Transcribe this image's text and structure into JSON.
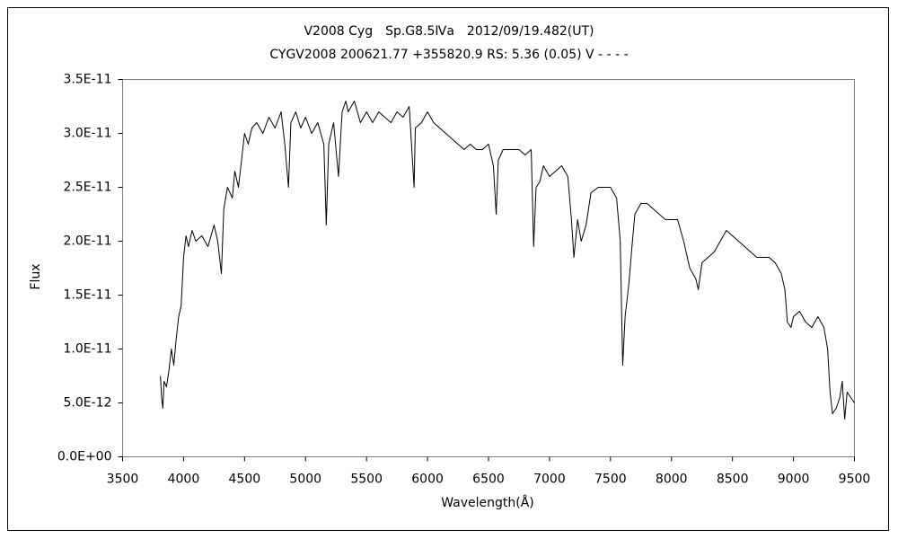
{
  "chart_data": {
    "type": "line",
    "title": "V2008 Cyg　Sp.G8.5Ⅳa　2012/09/19.482(UT)",
    "subtitle": "CYGV2008 200621.77 +355820.9 RS: 5.36 (0.05) V - - - -",
    "x_label": "Wavelength(Å)",
    "y_label": "Flux",
    "xlim": [
      3500,
      9500
    ],
    "xticks": [
      3500,
      4000,
      4500,
      5000,
      5500,
      6000,
      6500,
      7000,
      7500,
      8000,
      8500,
      9000,
      9500
    ],
    "ylim": [
      0,
      3.5e-11
    ],
    "yticks": [
      {
        "value": 0,
        "label": "0.0E+00"
      },
      {
        "value": 5e-12,
        "label": "5.0E-12"
      },
      {
        "value": 1e-11,
        "label": "1.0E-11"
      },
      {
        "value": 1.5e-11,
        "label": "1.5E-11"
      },
      {
        "value": 2e-11,
        "label": "2.0E-11"
      },
      {
        "value": 2.5e-11,
        "label": "2.5E-11"
      },
      {
        "value": 3e-11,
        "label": "3.0E-11"
      },
      {
        "value": 3.5e-11,
        "label": "3.5E-11"
      }
    ],
    "grid": false,
    "x": [
      3810,
      3820,
      3830,
      3840,
      3860,
      3880,
      3900,
      3920,
      3940,
      3960,
      3980,
      4000,
      4020,
      4040,
      4070,
      4100,
      4150,
      4200,
      4250,
      4280,
      4310,
      4330,
      4360,
      4400,
      4420,
      4450,
      4480,
      4500,
      4530,
      4560,
      4600,
      4650,
      4700,
      4750,
      4800,
      4830,
      4860,
      4880,
      4920,
      4960,
      5000,
      5050,
      5100,
      5150,
      5170,
      5190,
      5230,
      5270,
      5300,
      5330,
      5350,
      5400,
      5450,
      5500,
      5550,
      5600,
      5650,
      5700,
      5750,
      5800,
      5850,
      5890,
      5900,
      5950,
      6000,
      6050,
      6100,
      6150,
      6200,
      6250,
      6300,
      6350,
      6400,
      6450,
      6500,
      6540,
      6563,
      6580,
      6620,
      6680,
      6750,
      6800,
      6850,
      6870,
      6890,
      6920,
      6950,
      7000,
      7050,
      7100,
      7150,
      7180,
      7200,
      7230,
      7260,
      7300,
      7340,
      7400,
      7450,
      7500,
      7550,
      7580,
      7600,
      7620,
      7650,
      7680,
      7700,
      7750,
      7800,
      7850,
      7900,
      7950,
      8000,
      8050,
      8100,
      8150,
      8200,
      8220,
      8250,
      8300,
      8350,
      8400,
      8450,
      8500,
      8550,
      8600,
      8650,
      8700,
      8750,
      8800,
      8850,
      8900,
      8930,
      8950,
      8980,
      9000,
      9050,
      9100,
      9150,
      9200,
      9250,
      9280,
      9300,
      9320,
      9350,
      9380,
      9400,
      9420,
      9440,
      9470,
      9500
    ],
    "series": [
      {
        "name": "V2008 Cyg",
        "color": "#000000",
        "values": [
          7.5e-12,
          5.5e-12,
          4.5e-12,
          7e-12,
          6.5e-12,
          8e-12,
          1e-11,
          8.5e-12,
          1.1e-11,
          1.3e-11,
          1.4e-11,
          1.85e-11,
          2.05e-11,
          1.95e-11,
          2.1e-11,
          2e-11,
          2.05e-11,
          1.95e-11,
          2.15e-11,
          2e-11,
          1.7e-11,
          2.3e-11,
          2.5e-11,
          2.4e-11,
          2.65e-11,
          2.5e-11,
          2.8e-11,
          3e-11,
          2.9e-11,
          3.05e-11,
          3.1e-11,
          3e-11,
          3.15e-11,
          3.05e-11,
          3.2e-11,
          2.9e-11,
          2.5e-11,
          3.1e-11,
          3.2e-11,
          3.05e-11,
          3.15e-11,
          3e-11,
          3.1e-11,
          2.9e-11,
          2.15e-11,
          2.9e-11,
          3.1e-11,
          2.6e-11,
          3.2e-11,
          3.3e-11,
          3.2e-11,
          3.3e-11,
          3.1e-11,
          3.2e-11,
          3.1e-11,
          3.2e-11,
          3.15e-11,
          3.1e-11,
          3.2e-11,
          3.15e-11,
          3.25e-11,
          2.5e-11,
          3.05e-11,
          3.1e-11,
          3.2e-11,
          3.1e-11,
          3.05e-11,
          3e-11,
          2.95e-11,
          2.9e-11,
          2.85e-11,
          2.9e-11,
          2.85e-11,
          2.85e-11,
          2.9e-11,
          2.7e-11,
          2.25e-11,
          2.75e-11,
          2.85e-11,
          2.85e-11,
          2.85e-11,
          2.8e-11,
          2.85e-11,
          1.95e-11,
          2.5e-11,
          2.55e-11,
          2.7e-11,
          2.6e-11,
          2.65e-11,
          2.7e-11,
          2.6e-11,
          2.2e-11,
          1.85e-11,
          2.2e-11,
          2e-11,
          2.15e-11,
          2.45e-11,
          2.5e-11,
          2.5e-11,
          2.5e-11,
          2.4e-11,
          2e-11,
          8.5e-12,
          1.3e-11,
          1.6e-11,
          2e-11,
          2.25e-11,
          2.35e-11,
          2.35e-11,
          2.3e-11,
          2.25e-11,
          2.2e-11,
          2.2e-11,
          2.2e-11,
          2e-11,
          1.75e-11,
          1.65e-11,
          1.55e-11,
          1.8e-11,
          1.85e-11,
          1.9e-11,
          2e-11,
          2.1e-11,
          2.05e-11,
          2e-11,
          1.95e-11,
          1.9e-11,
          1.85e-11,
          1.85e-11,
          1.85e-11,
          1.8e-11,
          1.7e-11,
          1.55e-11,
          1.25e-11,
          1.2e-11,
          1.3e-11,
          1.35e-11,
          1.25e-11,
          1.2e-11,
          1.3e-11,
          1.2e-11,
          1e-11,
          6e-12,
          4e-12,
          4.5e-12,
          5.5e-12,
          7e-12,
          3.5e-12,
          6e-12,
          5.5e-12,
          5e-12
        ]
      }
    ]
  }
}
